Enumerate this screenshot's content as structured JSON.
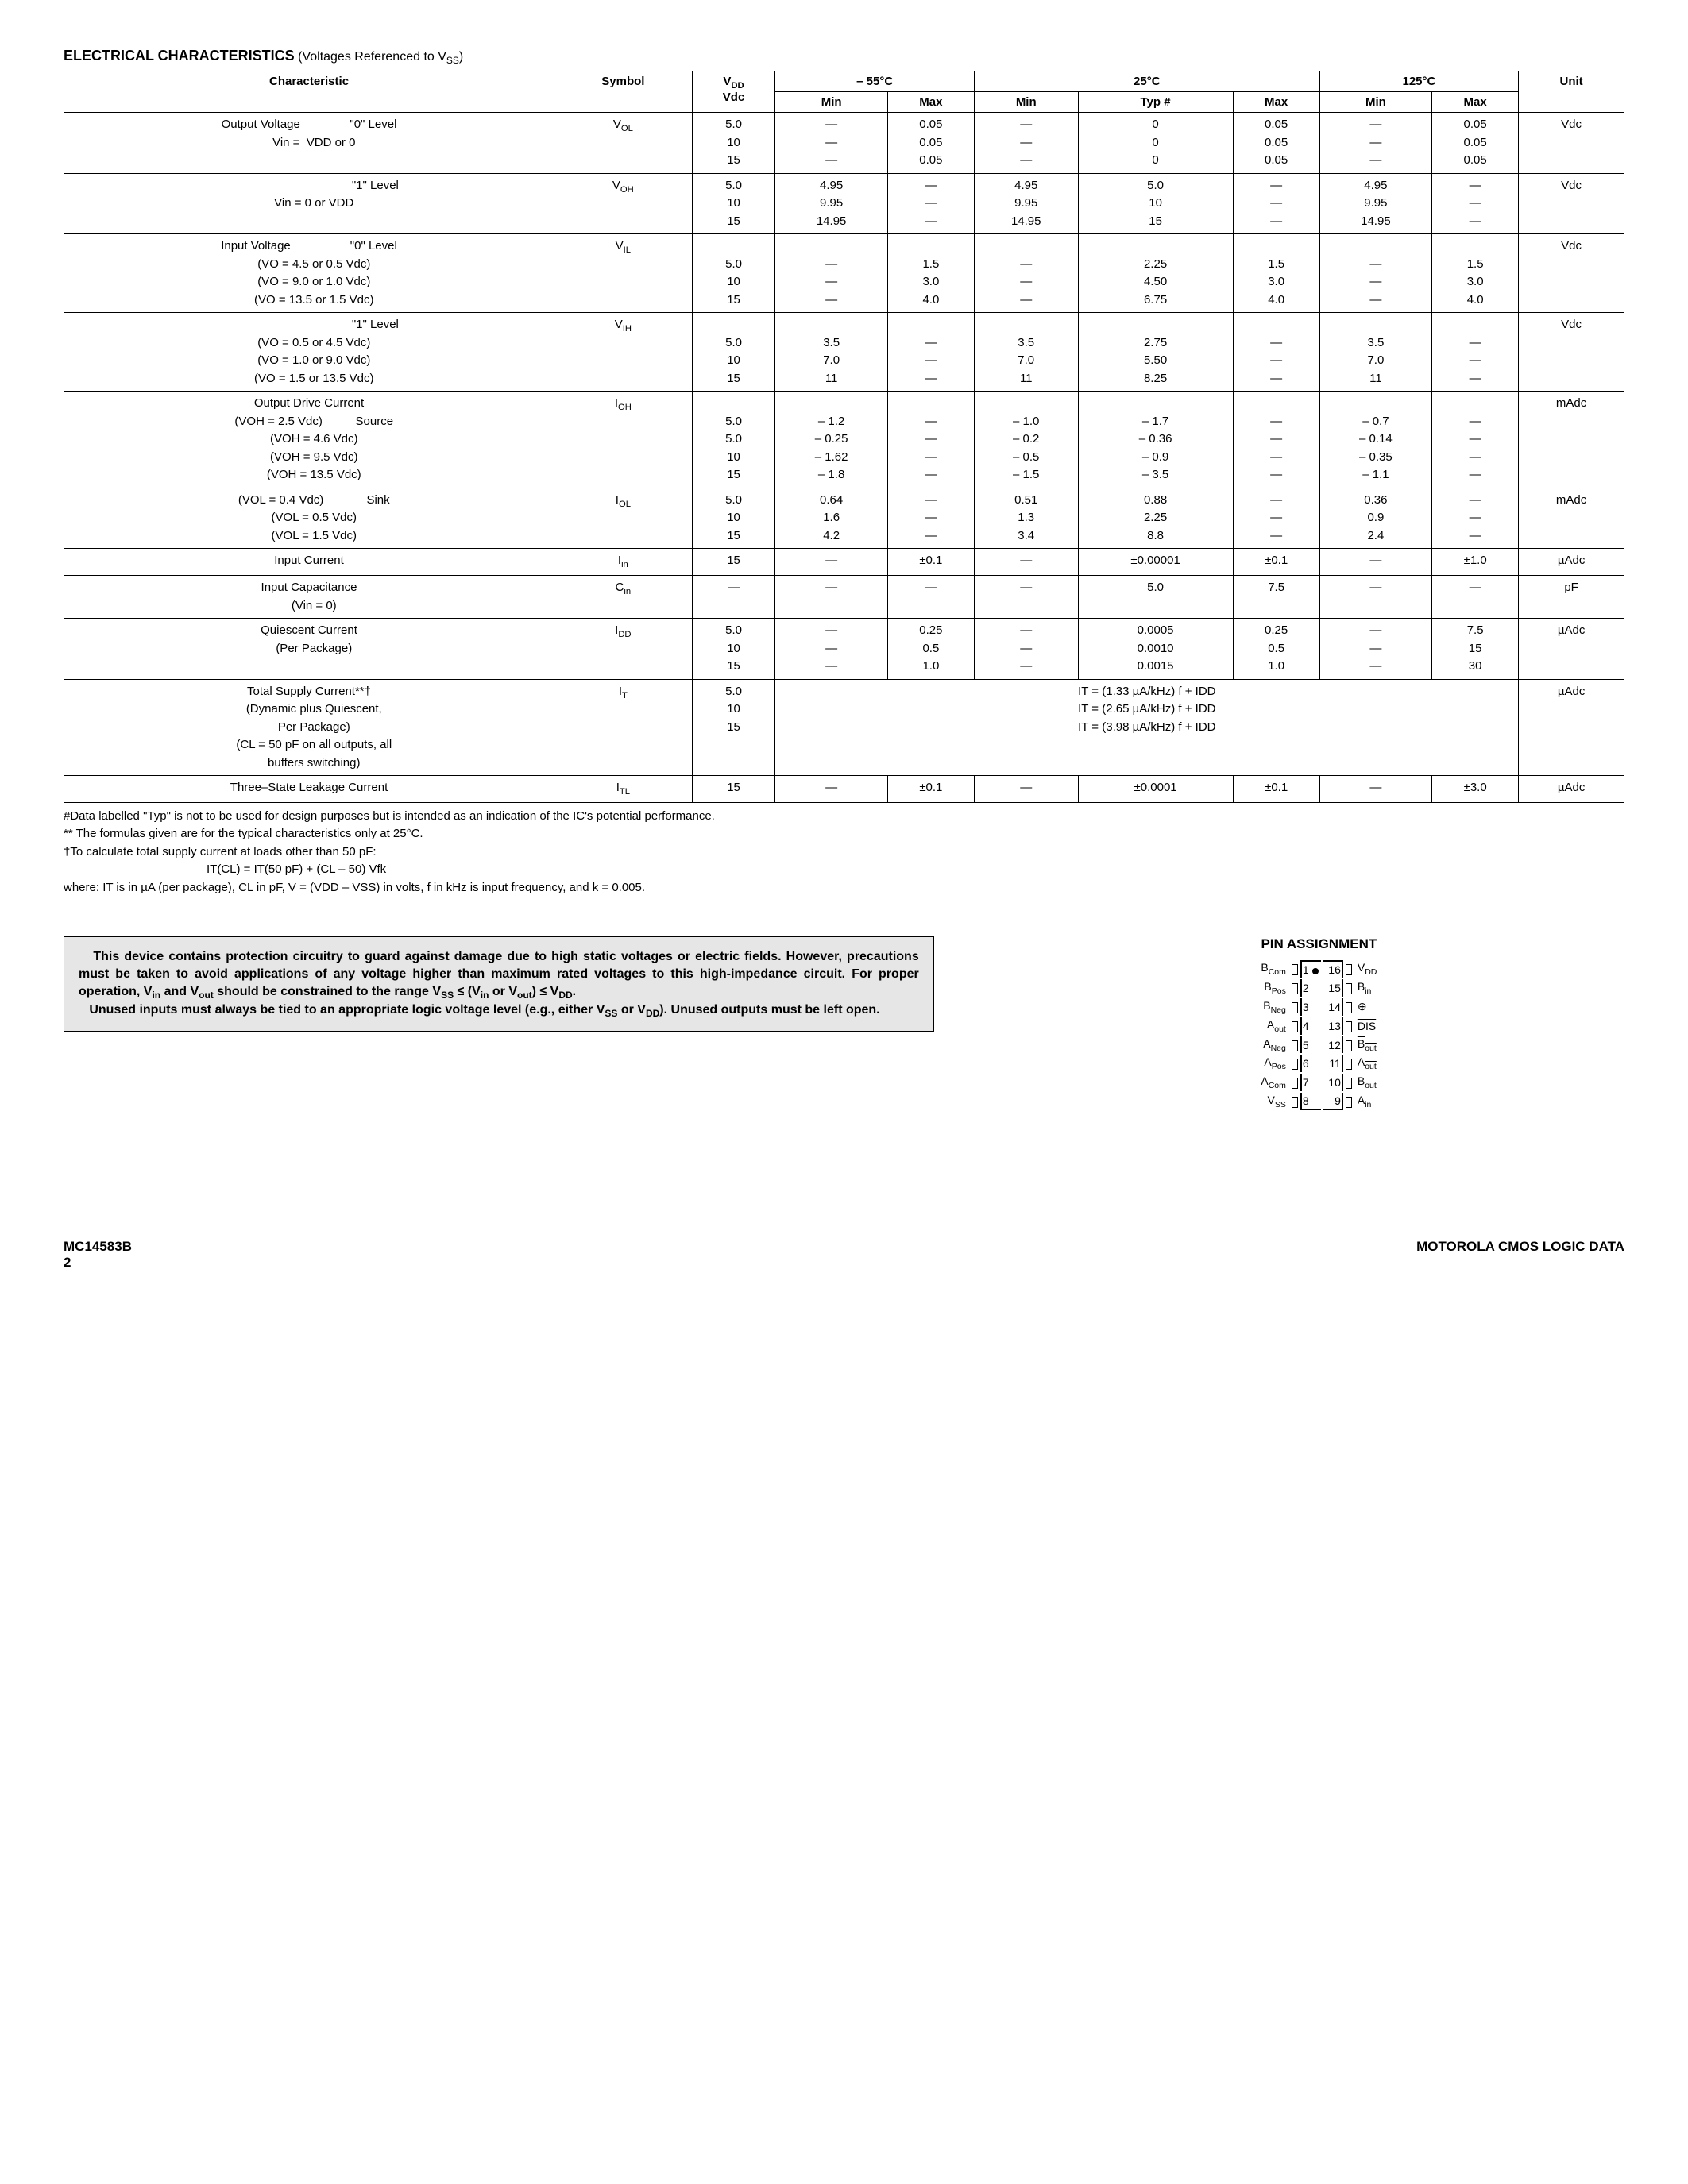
{
  "title_main": "ELECTRICAL CHARACTERISTICS",
  "title_sub": " (Voltages Referenced to V",
  "title_sub2": ")",
  "headers": {
    "char": "Characteristic",
    "sym": "Symbol",
    "vdd_top": "V",
    "vdd_bot": "Vdc",
    "t1": "– 55°C",
    "t2": "25°C",
    "t3": "125°C",
    "min": "Min",
    "max": "Max",
    "typ": "Typ #",
    "unit": "Unit"
  },
  "rows": [
    {
      "char": "Output Voltage               \"0\" Level\n   Vin =  VDD or 0",
      "sym": "VOL",
      "vdd": "5.0\n10\n15",
      "c1min": "—\n—\n—",
      "c1max": "0.05\n0.05\n0.05",
      "c2min": "—\n—\n—",
      "c2typ": "0\n0\n0",
      "c2max": "0.05\n0.05\n0.05",
      "c3min": "—\n—\n—",
      "c3max": "0.05\n0.05\n0.05",
      "unit": "Vdc"
    },
    {
      "char": "                                        \"1\" Level\n   Vin = 0 or VDD",
      "sym": "VOH",
      "vdd": "5.0\n10\n15",
      "c1min": "4.95\n9.95\n14.95",
      "c1max": "—\n—\n—",
      "c2min": "4.95\n9.95\n14.95",
      "c2typ": "5.0\n10\n15",
      "c2max": "—\n—\n—",
      "c3min": "4.95\n9.95\n14.95",
      "c3max": "—\n—\n—",
      "unit": "Vdc"
    },
    {
      "char": "Input Voltage                  \"0\" Level\n   (VO = 4.5 or 0.5 Vdc)\n   (VO = 9.0 or 1.0 Vdc)\n   (VO = 13.5 or 1.5 Vdc)",
      "sym": "VIL",
      "vdd": "\n5.0\n10\n15",
      "c1min": "\n—\n—\n—",
      "c1max": "\n1.5\n3.0\n4.0",
      "c2min": "\n—\n—\n—",
      "c2typ": "\n2.25\n4.50\n6.75",
      "c2max": "\n1.5\n3.0\n4.0",
      "c3min": "\n—\n—\n—",
      "c3max": "\n1.5\n3.0\n4.0",
      "unit": "Vdc"
    },
    {
      "char": "                                        \"1\" Level\n   (VO = 0.5 or 4.5 Vdc)\n   (VO = 1.0 or 9.0 Vdc)\n   (VO = 1.5 or 13.5 Vdc)",
      "sym": "VIH",
      "vdd": "\n5.0\n10\n15",
      "c1min": "\n3.5\n7.0\n11",
      "c1max": "\n—\n—\n—",
      "c2min": "\n3.5\n7.0\n11",
      "c2typ": "\n2.75\n5.50\n8.25",
      "c2max": "\n—\n—\n—",
      "c3min": "\n3.5\n7.0\n11",
      "c3max": "\n—\n—\n—",
      "unit": "Vdc"
    },
    {
      "char": "Output Drive Current\n   (VOH = 2.5 Vdc)          Source\n   (VOH = 4.6 Vdc)\n   (VOH = 9.5 Vdc)\n   (VOH = 13.5 Vdc)",
      "sym": "IOH",
      "vdd": "\n5.0\n5.0\n10\n15",
      "c1min": "\n– 1.2\n– 0.25\n– 1.62\n– 1.8",
      "c1max": "\n—\n—\n—\n—",
      "c2min": "\n– 1.0\n– 0.2\n– 0.5\n– 1.5",
      "c2typ": "\n– 1.7\n– 0.36\n– 0.9\n– 3.5",
      "c2max": "\n—\n—\n—\n—",
      "c3min": "\n– 0.7\n– 0.14\n– 0.35\n– 1.1",
      "c3max": "\n—\n—\n—\n—",
      "unit": "mAdc"
    },
    {
      "char": "   (VOL = 0.4 Vdc)             Sink\n   (VOL = 0.5 Vdc)\n   (VOL = 1.5 Vdc)",
      "sym": "IOL",
      "vdd": "5.0\n10\n15",
      "c1min": "0.64\n1.6\n4.2",
      "c1max": "—\n—\n—",
      "c2min": "0.51\n1.3\n3.4",
      "c2typ": "0.88\n2.25\n8.8",
      "c2max": "—\n—\n—",
      "c3min": "0.36\n0.9\n2.4",
      "c3max": "—\n—\n—",
      "unit": "mAdc"
    },
    {
      "char": "Input Current",
      "sym": "Iin",
      "vdd": "15",
      "c1min": "—",
      "c1max": "±0.1",
      "c2min": "—",
      "c2typ": "±0.00001",
      "c2max": "±0.1",
      "c3min": "—",
      "c3max": "±1.0",
      "unit": "µAdc"
    },
    {
      "char": "Input Capacitance\n   (Vin = 0)",
      "sym": "Cin",
      "vdd": "—",
      "c1min": "—",
      "c1max": "—",
      "c2min": "—",
      "c2typ": "5.0",
      "c2max": "7.5",
      "c3min": "—",
      "c3max": "—",
      "unit": "pF"
    },
    {
      "char": "Quiescent Current\n   (Per Package)",
      "sym": "IDD",
      "vdd": "5.0\n10\n15",
      "c1min": "—\n—\n—",
      "c1max": "0.25\n0.5\n1.0",
      "c2min": "—\n—\n—",
      "c2typ": "0.0005\n0.0010\n0.0015",
      "c2max": "0.25\n0.5\n1.0",
      "c3min": "—\n—\n—",
      "c3max": "7.5\n15\n30",
      "unit": "µAdc"
    }
  ],
  "total_supply": {
    "char": "Total Supply Current**†\n   (Dynamic plus Quiescent,\n   Per Package)\n   (CL = 50 pF on all outputs, all\n   buffers switching)",
    "sym": "IT",
    "vdd": "5.0\n10\n15",
    "formula": "IT = (1.33 µA/kHz) f + IDD\nIT = (2.65 µA/kHz) f + IDD\nIT = (3.98 µA/kHz) f + IDD",
    "unit": "µAdc"
  },
  "leakage": {
    "char": "Three–State Leakage Current",
    "sym": "ITL",
    "vdd": "15",
    "c1min": "—",
    "c1max": "±0.1",
    "c2min": "—",
    "c2typ": "±0.0001",
    "c2max": "±0.1",
    "c3min": "—",
    "c3max": "±3.0",
    "unit": "µAdc"
  },
  "notes": {
    "n1": "#Data labelled \"Typ\" is not to be used for design purposes but is intended as an indication of the IC's potential performance.",
    "n2": "** The formulas given are for the typical characteristics only at 25°C.",
    "n3": "†To calculate total supply current at loads other than 50 pF:",
    "formula": "IT(CL) = IT(50 pF) + (CL – 50) Vfk",
    "n4": "where: IT is in µA (per package), CL in pF, V = (VDD – VSS) in volts, f in kHz is input frequency, and k = 0.005."
  },
  "warning": {
    "p1a": "This device contains protection circuitry to guard against damage due to high static voltages or electric fields. However, precautions must be taken to avoid applications of any voltage higher than maximum rated voltages to this high-impedance circuit. For proper operation, V",
    "p1b": " and V",
    "p1c": " should be constrained to the range V",
    "p1d": " ≤ (V",
    "p1e": " or V",
    "p1f": ") ≤ V",
    "p1g": ".",
    "p2a": "Unused inputs must always be tied to an appropriate logic voltage level (e.g., either V",
    "p2b": " or V",
    "p2c": "). Unused outputs must be left open."
  },
  "pin": {
    "title": "PIN ASSIGNMENT",
    "left": [
      "BCom",
      "BPos",
      "BNeg",
      "Aout",
      "ANeg",
      "APos",
      "ACom",
      "VSS"
    ],
    "right": [
      "VDD",
      "Bin",
      "⊕",
      "DIS",
      "Bout",
      "Aout",
      "Bout",
      "Ain"
    ],
    "right_ovl": [
      false,
      false,
      false,
      true,
      true,
      true,
      false,
      false
    ],
    "numsL": [
      1,
      2,
      3,
      4,
      5,
      6,
      7,
      8
    ],
    "numsR": [
      16,
      15,
      14,
      13,
      12,
      11,
      10,
      9
    ]
  },
  "footer": {
    "left1": "MC14583B",
    "left2": "2",
    "right": "MOTOROLA CMOS LOGIC DATA"
  }
}
